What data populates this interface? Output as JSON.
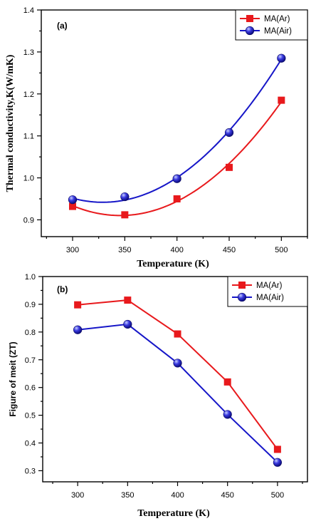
{
  "chart_data": [
    {
      "type": "scatter",
      "panel_label": "(a)",
      "xlabel": "Temperature (K)",
      "ylabel": "Thermal conductivity,K(W/mK)",
      "xlim": [
        270,
        525
      ],
      "ylim": [
        0.86,
        1.4
      ],
      "xticks": [
        "300",
        "350",
        "400",
        "450",
        "500"
      ],
      "yticks": [
        "0.9",
        "1.0",
        "1.1",
        "1.2",
        "1.3",
        "1.4"
      ],
      "fit": "quadratic",
      "legend_position": "top-right",
      "series": [
        {
          "name": "MA(Ar)",
          "color": "#e8191c",
          "marker": "square",
          "x": [
            300,
            350,
            400,
            450,
            500
          ],
          "y": [
            0.932,
            0.912,
            0.95,
            1.025,
            1.185
          ]
        },
        {
          "name": "MA(Air)",
          "color": "#1616c8",
          "marker": "sphere",
          "x": [
            300,
            350,
            400,
            450,
            500
          ],
          "y": [
            0.948,
            0.955,
            0.998,
            1.108,
            1.285
          ]
        }
      ]
    },
    {
      "type": "line",
      "panel_label": "(b)",
      "xlabel": "Temperature (K)",
      "ylabel": "Figure of meit (ZT)",
      "xlim": [
        265,
        530
      ],
      "ylim": [
        0.26,
        1.0
      ],
      "xticks": [
        "300",
        "350",
        "400",
        "450",
        "500"
      ],
      "yticks": [
        "0.3",
        "0.4",
        "0.5",
        "0.6",
        "0.7",
        "0.8",
        "0.9",
        "1.0"
      ],
      "legend_position": "top-right",
      "series": [
        {
          "name": "MA(Ar)",
          "color": "#e8191c",
          "marker": "square",
          "x": [
            300,
            350,
            400,
            450,
            500
          ],
          "y": [
            0.898,
            0.915,
            0.793,
            0.62,
            0.377
          ]
        },
        {
          "name": "MA(Air)",
          "color": "#1616c8",
          "marker": "sphere",
          "x": [
            300,
            350,
            400,
            450,
            500
          ],
          "y": [
            0.808,
            0.828,
            0.688,
            0.503,
            0.33
          ]
        }
      ]
    }
  ]
}
